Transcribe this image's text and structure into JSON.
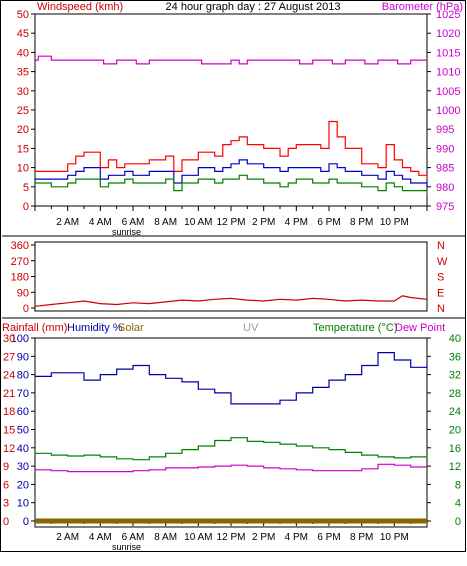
{
  "colors": {
    "wind": "#cc0000",
    "gust": "#ff0000",
    "wind_avg": "#0000cc",
    "wind_low": "#008000",
    "barometer": "#cc00cc",
    "direction": "#cc0000",
    "humidity": "#0000aa",
    "temperature": "#008000",
    "dewpoint": "#cc00cc",
    "rainfall": "#cc0000",
    "solar": "#886600",
    "uv": "#999999",
    "frame": "#000000"
  },
  "header": {
    "title": "24 hour graph day : 27 August 2013",
    "left_label": "Windspeed (kmh)",
    "right_label": "Barometer (hPa)"
  },
  "panel2": {
    "right_labels": [
      "N",
      "W",
      "S",
      "E",
      "N"
    ]
  },
  "panel3": {
    "labels": {
      "rainfall": "Rainfall (mm)",
      "humidity": "Humidity %",
      "solar": "Solar",
      "uv": "UV",
      "temperature": "Temperature (°C)",
      "dewpoint": "Dew Point"
    }
  },
  "x_axis": {
    "ticks": [
      "2 AM",
      "4 AM",
      "6 AM",
      "8 AM",
      "10 AM",
      "12 PM",
      "2 PM",
      "4 PM",
      "6 PM",
      "8 PM",
      "10 PM"
    ],
    "sunrise_label": "sunrise"
  },
  "chart_data": [
    {
      "type": "line",
      "title": "24 hour graph day : 27 August 2013",
      "ylabel": "Windspeed (kmh)",
      "ylim": [
        0,
        50
      ],
      "yticks": [
        0,
        5,
        10,
        15,
        20,
        25,
        30,
        35,
        40,
        45,
        50
      ],
      "y2label": "Barometer (hPa)",
      "y2lim": [
        975,
        1025
      ],
      "y2ticks": [
        975,
        980,
        985,
        990,
        995,
        1000,
        1005,
        1010,
        1015,
        1020,
        1025
      ],
      "xlim_hours": [
        0,
        24
      ],
      "series": [
        {
          "key": "gust",
          "axis": "left",
          "x": [
            0,
            1,
            2,
            2.5,
            3,
            4,
            4.5,
            5,
            5.5,
            6,
            7,
            8,
            8.5,
            9,
            10,
            11,
            11.5,
            12,
            12.5,
            13,
            14,
            15,
            15.5,
            16,
            17,
            17.5,
            18,
            18.5,
            19,
            20,
            21,
            21.5,
            22,
            22.5,
            23,
            23.5,
            24
          ],
          "y": [
            9,
            9,
            11,
            13,
            14,
            10,
            12,
            10,
            11,
            11,
            12,
            13,
            9,
            12,
            14,
            13,
            16,
            17,
            18,
            16,
            15,
            13,
            15,
            16,
            16,
            15,
            22,
            18,
            15,
            11,
            10,
            16,
            12,
            10,
            9,
            8,
            7
          ]
        },
        {
          "key": "wind_avg",
          "axis": "left",
          "x": [
            0,
            1,
            2,
            2.5,
            3,
            4,
            4.5,
            5,
            5.5,
            6,
            7,
            8,
            8.5,
            9,
            10,
            11,
            11.5,
            12,
            12.5,
            13,
            14,
            15,
            15.5,
            16,
            17,
            17.5,
            18,
            18.5,
            19,
            20,
            21,
            21.5,
            22,
            22.5,
            23,
            23.5,
            24
          ],
          "y": [
            7,
            7,
            8,
            9,
            10,
            7,
            8,
            8,
            9,
            8,
            9,
            9,
            6,
            8,
            10,
            9,
            10,
            11,
            12,
            11,
            10,
            9,
            10,
            10,
            10,
            9,
            11,
            10,
            9,
            8,
            7,
            9,
            8,
            7,
            6,
            6,
            5
          ]
        },
        {
          "key": "wind_low",
          "axis": "left",
          "x": [
            0,
            1,
            2,
            2.5,
            3,
            4,
            4.5,
            5,
            5.5,
            6,
            7,
            8,
            8.5,
            9,
            10,
            11,
            11.5,
            12,
            12.5,
            13,
            14,
            15,
            15.5,
            16,
            17,
            17.5,
            18,
            18.5,
            19,
            20,
            21,
            21.5,
            22,
            22.5,
            23,
            23.5,
            24
          ],
          "y": [
            6,
            5,
            6,
            7,
            7,
            5,
            6,
            6,
            7,
            6,
            6,
            7,
            4,
            6,
            7,
            6,
            7,
            7,
            8,
            7,
            6,
            5,
            6,
            7,
            6,
            6,
            7,
            6,
            6,
            5,
            4,
            6,
            5,
            4,
            4,
            4,
            3
          ]
        },
        {
          "key": "barometer",
          "axis": "right",
          "x": [
            0,
            0.2,
            0.9,
            1,
            2,
            4,
            4.2,
            5,
            6,
            6.2,
            7,
            8,
            10,
            10.2,
            12,
            12.5,
            13,
            14,
            15,
            16,
            16.2,
            17,
            18,
            18.2,
            19,
            20,
            20.2,
            21,
            22,
            22.2,
            23,
            24
          ],
          "y": [
            1013,
            1014,
            1014,
            1013,
            1013,
            1013,
            1012,
            1013,
            1013,
            1012,
            1013,
            1013,
            1013,
            1012,
            1013,
            1012,
            1013,
            1013,
            1013,
            1013,
            1012,
            1013,
            1013,
            1012,
            1013,
            1013,
            1012,
            1013,
            1013,
            1012,
            1013,
            1013
          ]
        }
      ]
    },
    {
      "type": "line",
      "ylim": [
        0,
        360
      ],
      "yticks": [
        0,
        90,
        180,
        270,
        360
      ],
      "xlim_hours": [
        0,
        24
      ],
      "series": [
        {
          "key": "wind_direction",
          "x": [
            0,
            1,
            2,
            3,
            4,
            5,
            6,
            7,
            8,
            9,
            10,
            11,
            12,
            13,
            14,
            15,
            16,
            17,
            18,
            19,
            20,
            21,
            22,
            22.5,
            23,
            24
          ],
          "y": [
            10,
            20,
            30,
            40,
            25,
            20,
            30,
            25,
            35,
            45,
            40,
            50,
            55,
            45,
            40,
            50,
            45,
            55,
            50,
            40,
            45,
            40,
            40,
            70,
            60,
            50
          ]
        }
      ]
    },
    {
      "type": "line",
      "ylabel": "Rainfall (mm) / Humidity %",
      "ylim": [
        0,
        100
      ],
      "yticks": [
        0,
        10,
        20,
        30,
        40,
        50,
        60,
        70,
        80,
        90,
        100
      ],
      "yticks_rain": [
        0,
        3,
        6,
        9,
        12,
        15,
        18,
        21,
        24,
        27,
        30
      ],
      "y2label": "Temperature (°C)",
      "y2lim": [
        0,
        40
      ],
      "y2ticks": [
        0,
        4,
        8,
        12,
        16,
        20,
        24,
        28,
        32,
        36,
        40
      ],
      "xlim_hours": [
        0,
        24
      ],
      "series": [
        {
          "key": "humidity",
          "axis": "left",
          "x": [
            0,
            1,
            2,
            3,
            4,
            5,
            6,
            7,
            8,
            9,
            10,
            11,
            12,
            13,
            14,
            15,
            16,
            17,
            18,
            19,
            20,
            21,
            22,
            23,
            24
          ],
          "y": [
            79,
            81,
            81,
            77,
            80,
            83,
            85,
            80,
            78,
            76,
            72,
            70,
            64,
            64,
            64,
            66,
            70,
            73,
            77,
            80,
            85,
            92,
            88,
            84,
            87
          ]
        },
        {
          "key": "temperature",
          "axis": "right",
          "x": [
            0,
            1,
            2,
            3,
            4,
            5,
            6,
            7,
            8,
            9,
            10,
            11,
            12,
            13,
            14,
            15,
            16,
            17,
            18,
            19,
            20,
            21,
            22,
            23,
            24
          ],
          "y": [
            14.8,
            14.4,
            14.2,
            14.4,
            14.0,
            13.6,
            13.4,
            14.0,
            14.8,
            15.6,
            16.4,
            17.6,
            18.2,
            17.4,
            17.2,
            16.8,
            16.4,
            16.0,
            15.6,
            15.0,
            14.4,
            14.0,
            13.8,
            14.0,
            14.2
          ]
        },
        {
          "key": "dewpoint",
          "axis": "right",
          "x": [
            0,
            1,
            2,
            3,
            4,
            5,
            6,
            7,
            8,
            9,
            10,
            11,
            12,
            13,
            14,
            15,
            16,
            17,
            18,
            19,
            20,
            21,
            22,
            23,
            24
          ],
          "y": [
            11.2,
            11.0,
            10.8,
            10.8,
            10.8,
            10.8,
            11.0,
            11.2,
            11.6,
            11.6,
            11.8,
            12.0,
            12.2,
            12.0,
            11.6,
            11.4,
            11.2,
            11.0,
            11.0,
            11.0,
            11.4,
            12.4,
            12.2,
            11.8,
            11.8
          ]
        },
        {
          "key": "rainfall",
          "axis": "left",
          "x": [
            0,
            24
          ],
          "y": [
            0,
            0
          ]
        }
      ]
    }
  ]
}
